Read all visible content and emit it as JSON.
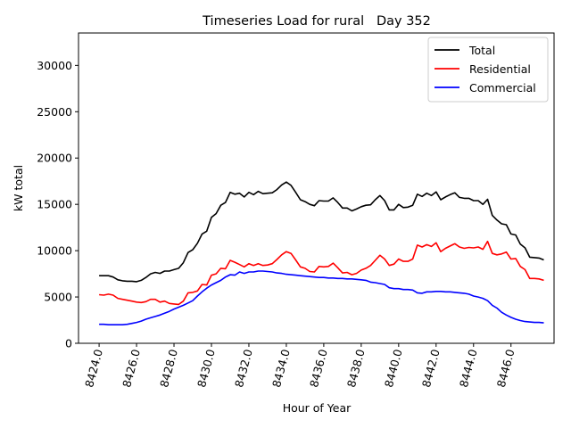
{
  "chart_data": {
    "type": "line",
    "title": "Timeseries Load for rural   Day 352",
    "xlabel": "Hour of Year",
    "ylabel": "kW total",
    "xlim": [
      8422.9,
      8448.3
    ],
    "ylim": [
      0,
      33500
    ],
    "xticks": [
      8424,
      8426,
      8428,
      8430,
      8432,
      8434,
      8436,
      8438,
      8440,
      8442,
      8444,
      8446
    ],
    "xtick_labels": [
      "8424.0",
      "8426.0",
      "8428.0",
      "8430.0",
      "8432.0",
      "8434.0",
      "8436.0",
      "8438.0",
      "8440.0",
      "8442.0",
      "8444.0",
      "8446.0"
    ],
    "yticks": [
      0,
      5000,
      10000,
      15000,
      20000,
      25000,
      30000
    ],
    "ytick_labels": [
      "0",
      "5000",
      "10000",
      "15000",
      "20000",
      "25000",
      "30000"
    ],
    "legend_position": "top-right",
    "x": [
      8424,
      8424.25,
      8424.5,
      8424.75,
      8425,
      8425.25,
      8425.5,
      8425.75,
      8426,
      8426.25,
      8426.5,
      8426.75,
      8427,
      8427.25,
      8427.5,
      8427.75,
      8428,
      8428.25,
      8428.5,
      8428.75,
      8429,
      8429.25,
      8429.5,
      8429.75,
      8430,
      8430.25,
      8430.5,
      8430.75,
      8431,
      8431.25,
      8431.5,
      8431.75,
      8432,
      8432.25,
      8432.5,
      8432.75,
      8433,
      8433.25,
      8433.5,
      8433.75,
      8434,
      8434.25,
      8434.5,
      8434.75,
      8435,
      8435.25,
      8435.5,
      8435.75,
      8436,
      8436.25,
      8436.5,
      8436.75,
      8437,
      8437.25,
      8437.5,
      8437.75,
      8438,
      8438.25,
      8438.5,
      8438.75,
      8439,
      8439.25,
      8439.5,
      8439.75,
      8440,
      8440.25,
      8440.5,
      8440.75,
      8441,
      8441.25,
      8441.5,
      8441.75,
      8442,
      8442.25,
      8442.5,
      8442.75,
      8443,
      8443.25,
      8443.5,
      8443.75,
      8444,
      8444.25,
      8444.5,
      8444.75,
      8445,
      8445.25,
      8445.5,
      8445.75,
      8446,
      8446.25,
      8446.5,
      8446.75,
      8447,
      8447.25,
      8447.5,
      8447.75
    ],
    "series": [
      {
        "name": "Total",
        "color": "#000000",
        "values": [
          7300,
          7300,
          7300,
          7150,
          6850,
          6750,
          6700,
          6700,
          6650,
          6800,
          7100,
          7500,
          7650,
          7550,
          7800,
          7800,
          7950,
          8100,
          8700,
          9800,
          10100,
          10800,
          11800,
          12100,
          13600,
          14000,
          14900,
          15200,
          16300,
          16100,
          16200,
          15800,
          16300,
          16050,
          16400,
          16150,
          16200,
          16250,
          16600,
          17100,
          17400,
          17050,
          16300,
          15500,
          15300,
          15000,
          14850,
          15400,
          15350,
          15350,
          15700,
          15200,
          14600,
          14600,
          14300,
          14500,
          14750,
          14900,
          14950,
          15500,
          15950,
          15400,
          14400,
          14400,
          15000,
          14650,
          14700,
          14900,
          16100,
          15850,
          16200,
          15950,
          16350,
          15500,
          15800,
          16050,
          16250,
          15750,
          15650,
          15650,
          15400,
          15400,
          15000,
          15550,
          13800,
          13300,
          12900,
          12800,
          11800,
          11700,
          10700,
          10300,
          9300,
          9250,
          9200,
          9000
        ]
      },
      {
        "name": "Residential",
        "color": "#ff0000",
        "values": [
          5250,
          5200,
          5300,
          5200,
          4850,
          4750,
          4650,
          4550,
          4450,
          4400,
          4500,
          4750,
          4750,
          4450,
          4550,
          4300,
          4250,
          4200,
          4550,
          5450,
          5500,
          5650,
          6350,
          6300,
          7350,
          7500,
          8100,
          8050,
          8950,
          8750,
          8500,
          8250,
          8600,
          8400,
          8600,
          8400,
          8450,
          8600,
          9050,
          9550,
          9900,
          9700,
          9000,
          8250,
          8100,
          7750,
          7700,
          8300,
          8250,
          8300,
          8650,
          8150,
          7600,
          7650,
          7400,
          7550,
          7900,
          8100,
          8400,
          8950,
          9500,
          9100,
          8400,
          8550,
          9100,
          8850,
          8850,
          9100,
          10600,
          10400,
          10650,
          10450,
          10850,
          9900,
          10250,
          10500,
          10750,
          10400,
          10250,
          10350,
          10300,
          10400,
          10150,
          11000,
          9700,
          9550,
          9650,
          9850,
          9100,
          9150,
          8300,
          7950,
          7000,
          7000,
          6950,
          6800
        ]
      },
      {
        "name": "Commercial",
        "color": "#0000ff",
        "values": [
          2050,
          2050,
          2000,
          2000,
          2000,
          2000,
          2050,
          2150,
          2250,
          2400,
          2600,
          2750,
          2900,
          3050,
          3250,
          3450,
          3700,
          3900,
          4100,
          4350,
          4600,
          5100,
          5550,
          5950,
          6300,
          6550,
          6800,
          7150,
          7400,
          7350,
          7700,
          7550,
          7700,
          7700,
          7800,
          7800,
          7750,
          7700,
          7600,
          7550,
          7450,
          7400,
          7350,
          7300,
          7250,
          7200,
          7150,
          7100,
          7100,
          7050,
          7050,
          7000,
          7000,
          6950,
          6950,
          6900,
          6850,
          6800,
          6600,
          6550,
          6450,
          6350,
          6000,
          5900,
          5900,
          5800,
          5800,
          5750,
          5450,
          5400,
          5550,
          5550,
          5600,
          5600,
          5550,
          5550,
          5500,
          5450,
          5400,
          5300,
          5100,
          5000,
          4850,
          4600,
          4100,
          3800,
          3350,
          3050,
          2800,
          2600,
          2450,
          2350,
          2300,
          2250,
          2250,
          2200
        ]
      }
    ]
  }
}
